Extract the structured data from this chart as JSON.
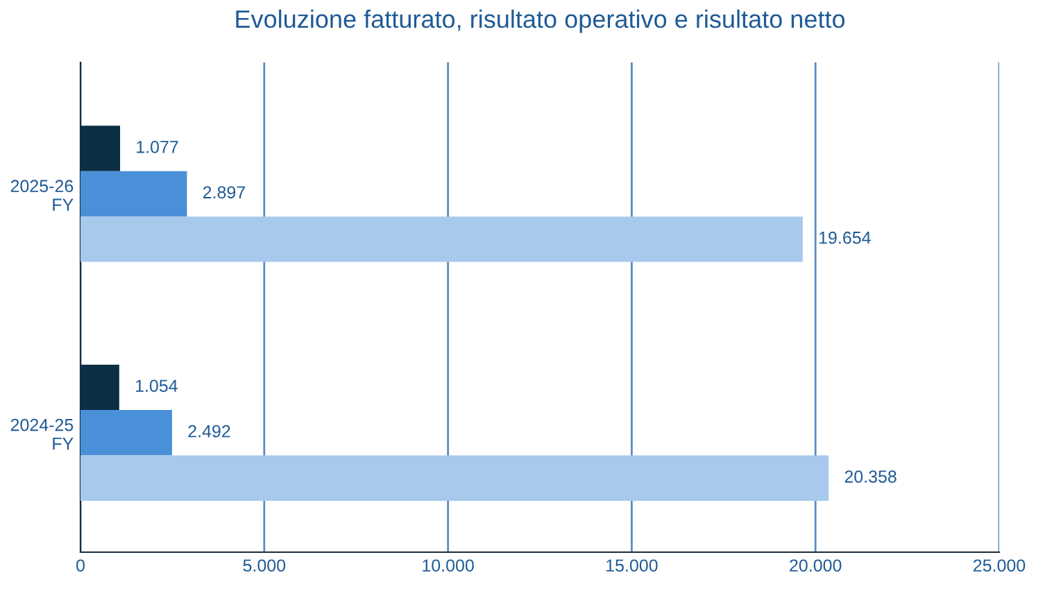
{
  "chart_data": {
    "type": "bar",
    "orientation": "horizontal",
    "title": "Evoluzione fatturato, risultato operativo e risultato netto",
    "categories": [
      "2025-26\nFY",
      "2024-25\nFY"
    ],
    "series": [
      {
        "color": "#0b2e44",
        "values": [
          1077,
          1054
        ],
        "value_labels": [
          "1.077",
          "1.054"
        ]
      },
      {
        "color": "#4a90d9",
        "values": [
          2897,
          2492
        ],
        "value_labels": [
          "2.897",
          "2.492"
        ]
      },
      {
        "color": "#a7c9ec",
        "values": [
          19654,
          20358
        ],
        "value_labels": [
          "19.654",
          "20.358"
        ]
      }
    ],
    "xlim": [
      0,
      25000
    ],
    "xticks": [
      0,
      {
        "value": 5000,
        "label": "5.000"
      },
      {
        "value": 10000,
        "label": "10.000"
      },
      {
        "value": 15000,
        "label": "15.000"
      },
      {
        "value": 20000,
        "label": "20.000"
      },
      {
        "value": 25000,
        "label": "25.000"
      }
    ],
    "grid": "x",
    "legend": false
  }
}
